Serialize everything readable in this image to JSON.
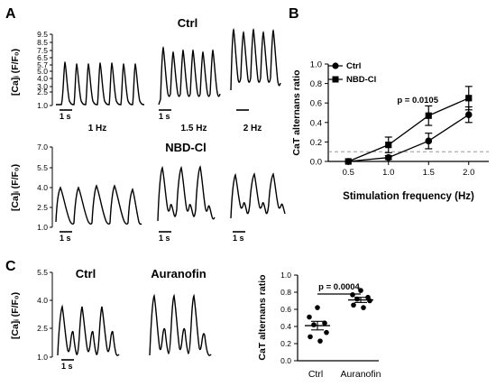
{
  "panels": {
    "A": "A",
    "B": "B",
    "C": "C"
  },
  "trace_ylabel": "[Ca]ᵢ (F/F₀)",
  "scalebar_label": "1 s",
  "panel_a": {
    "ctrl_title": "Ctrl",
    "nbd_title": "NBD-Cl",
    "rates": [
      "1 Hz",
      "1.5 Hz",
      "2 Hz"
    ],
    "ctrl_yticks": [
      "1.0",
      "2.5",
      "3.0",
      "4.0",
      "5.0",
      "5.7",
      "6.5",
      "7.5",
      "8.5",
      "9.5"
    ],
    "nbd_yticks": [
      "1.0",
      "2.5",
      "4.0",
      "5.5",
      "7.0"
    ]
  },
  "panel_c": {
    "ctrl_title": "Ctrl",
    "aur_title": "Auranofin",
    "yticks": [
      "1.0",
      "2.5",
      "4.0",
      "5.5"
    ]
  },
  "chart_data": [
    {
      "type": "line",
      "panel": "B",
      "x": [
        0.5,
        1.0,
        1.5,
        2.0
      ],
      "xticks": [
        "0.5",
        "1.0",
        "1.5",
        "2.0"
      ],
      "xlabel": "Stimulation frequency (Hz)",
      "ylabel": "CaT alternans ratio",
      "ylim": [
        0.0,
        1.0
      ],
      "yticks": [
        "0.0",
        "0.2",
        "0.4",
        "0.6",
        "0.8",
        "1.0"
      ],
      "reference_line": 0.1,
      "legend_position": "top-left",
      "annotation": "p = 0.0105",
      "series": [
        {
          "name": "Ctrl",
          "marker": "circle",
          "values": [
            0.0,
            0.04,
            0.21,
            0.48
          ],
          "err": [
            0.0,
            0.02,
            0.08,
            0.08
          ]
        },
        {
          "name": "NBD-Cl",
          "marker": "square",
          "values": [
            0.0,
            0.17,
            0.47,
            0.65
          ],
          "err": [
            0.0,
            0.08,
            0.1,
            0.12
          ]
        }
      ]
    },
    {
      "type": "scatter",
      "panel": "C",
      "categories": [
        "Ctrl",
        "Auranofin"
      ],
      "ylabel": "CaT alternans ratio",
      "ylim": [
        0.0,
        1.0
      ],
      "yticks": [
        "0.0",
        "0.2",
        "0.4",
        "0.6",
        "0.8",
        "1.0"
      ],
      "annotation": "p = 0.0004",
      "groups": [
        {
          "name": "Ctrl",
          "points": [
            0.62,
            0.51,
            0.44,
            0.42,
            0.33,
            0.28,
            0.23
          ],
          "mean": 0.41,
          "sem": 0.05
        },
        {
          "name": "Auranofin",
          "points": [
            0.82,
            0.77,
            0.74,
            0.72,
            0.7,
            0.65,
            0.62
          ],
          "mean": 0.71,
          "sem": 0.03
        }
      ]
    }
  ]
}
